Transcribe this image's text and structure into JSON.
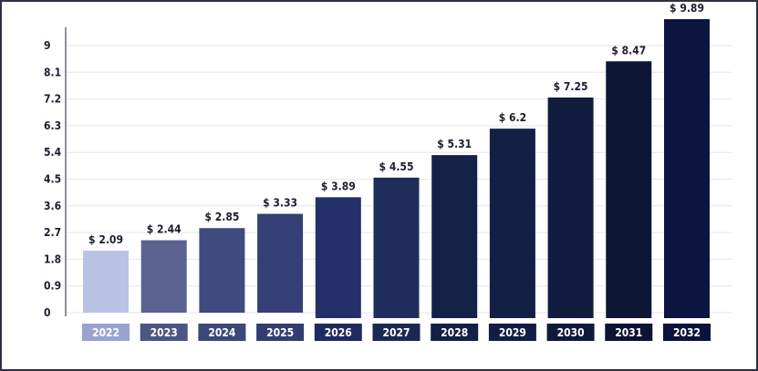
{
  "chart_data": {
    "type": "bar",
    "categories": [
      "2022",
      "2023",
      "2024",
      "2025",
      "2026",
      "2027",
      "2028",
      "2029",
      "2030",
      "2031",
      "2032"
    ],
    "values": [
      2.09,
      2.44,
      2.85,
      3.33,
      3.89,
      4.55,
      5.31,
      6.2,
      7.25,
      8.47,
      9.89
    ],
    "data_labels": [
      "$ 2.09",
      "$ 2.44",
      "$ 2.85",
      "$ 3.33",
      "$ 3.89",
      "$ 4.55",
      "$ 5.31",
      "$ 6.2",
      "$ 7.25",
      "$ 8.47",
      "$ 9.89"
    ],
    "yticks": [
      "0",
      "0.9",
      "1.8",
      "2.7",
      "3.6",
      "4.5",
      "5.4",
      "6.3",
      "7.2",
      "8.1",
      "9"
    ],
    "ylim": [
      0,
      9
    ],
    "title": "",
    "xlabel": "",
    "ylabel": "",
    "grid": true,
    "bar_colors": [
      "#b9c3e4",
      "#5a6290",
      "#3f4a80",
      "#353f75",
      "#24306a",
      "#1e2d5a",
      "#142248",
      "#132046",
      "#111c3e",
      "#0d1634",
      "#0c1540"
    ],
    "label_box_colors": [
      "#9aa3d0",
      "#4d5582",
      "#3d4878",
      "#333d70",
      "#1f2a5e",
      "#1b2852",
      "#131f44",
      "#121d41",
      "#0f1a3b",
      "#0c1432",
      "#0b133a"
    ]
  }
}
